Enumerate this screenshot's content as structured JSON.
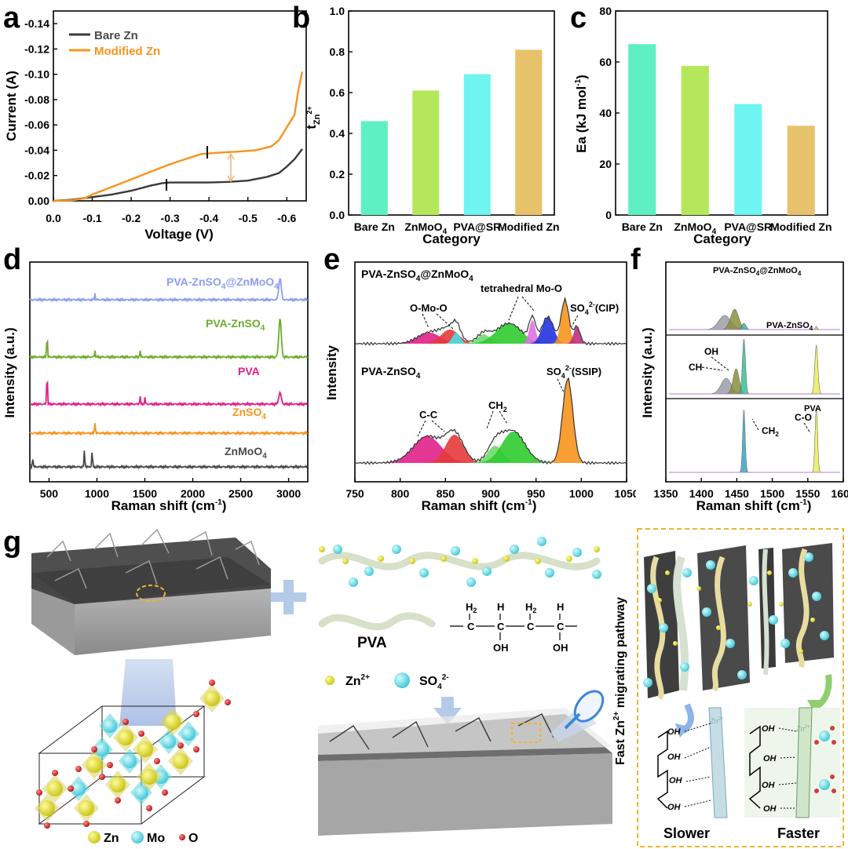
{
  "panel_labels": {
    "a": "a",
    "b": "b",
    "c": "c",
    "d": "d",
    "e": "e",
    "f": "f",
    "g": "g"
  },
  "colors": {
    "bare": "#3a3a3a",
    "modified": "#f7941d",
    "teal": "#5ef0c2",
    "green": "#b4e85a",
    "cyan": "#6ef5f2",
    "gold": "#e8c26a",
    "peri": "#8c9df0",
    "lime": "#6cad2a",
    "pink": "#e0208a",
    "orange": "#f7941d",
    "gray": "#4a4a4a",
    "dash": "#f0b232"
  },
  "chart_data": [
    {
      "id": "a",
      "type": "line",
      "xlabel": "Voltage (V)",
      "ylabel": "Current (A)",
      "xlim": [
        0.0,
        -0.65
      ],
      "ylim": [
        0.0,
        -0.15
      ],
      "xticks": [
        "0.0",
        "-0.1",
        "-0.2",
        "-0.3",
        "-0.4",
        "-0.5",
        "-0.6"
      ],
      "yticks": [
        "0.00",
        "-0.02",
        "-0.04",
        "-0.06",
        "-0.08",
        "-0.10",
        "-0.12",
        "-0.14"
      ],
      "legend": "top-left",
      "series": [
        {
          "name": "Bare Zn",
          "color": "#3a3a3a",
          "x": [
            0,
            -0.05,
            -0.1,
            -0.15,
            -0.2,
            -0.25,
            -0.28,
            -0.3,
            -0.35,
            -0.4,
            -0.45,
            -0.5,
            -0.55,
            -0.58,
            -0.6,
            -0.62,
            -0.64
          ],
          "y": [
            0,
            -0.001,
            -0.003,
            -0.005,
            -0.008,
            -0.012,
            -0.014,
            -0.0145,
            -0.0145,
            -0.0145,
            -0.015,
            -0.016,
            -0.019,
            -0.022,
            -0.027,
            -0.033,
            -0.041
          ]
        },
        {
          "name": "Modified Zn",
          "color": "#f7941d",
          "x": [
            0,
            -0.05,
            -0.08,
            -0.1,
            -0.15,
            -0.2,
            -0.25,
            -0.3,
            -0.35,
            -0.38,
            -0.42,
            -0.48,
            -0.52,
            -0.56,
            -0.58,
            -0.6,
            -0.62,
            -0.63,
            -0.64
          ],
          "y": [
            0,
            -0.0005,
            -0.002,
            -0.005,
            -0.011,
            -0.017,
            -0.023,
            -0.029,
            -0.034,
            -0.037,
            -0.038,
            -0.039,
            -0.04,
            -0.043,
            -0.048,
            -0.058,
            -0.068,
            -0.088,
            -0.102
          ]
        }
      ]
    },
    {
      "id": "b",
      "type": "bar",
      "xlabel": "Category",
      "ylabel": "t",
      "ylabel_sub": "Zn",
      "ylabel_sup": "2+",
      "categories": [
        "Bare Zn",
        "ZnMoO",
        "PVA@SR",
        "Modified Zn"
      ],
      "category_subs": [
        "",
        "4",
        "",
        ""
      ],
      "values": [
        0.46,
        0.61,
        0.69,
        0.81
      ],
      "ylim": [
        0,
        1.0
      ],
      "yticks": [
        "0.0",
        "0.2",
        "0.4",
        "0.6",
        "0.8",
        "1.0"
      ]
    },
    {
      "id": "c",
      "type": "bar",
      "xlabel": "Category",
      "ylabel": "Ea (kJ mol",
      "ylabel_sup": "-1",
      "ylabel_end": ")",
      "categories": [
        "Bare Zn",
        "ZnMoO",
        "PVA@SR",
        "Modified Zn"
      ],
      "category_subs": [
        "",
        "4",
        "",
        ""
      ],
      "values": [
        67,
        58.5,
        43.5,
        35
      ],
      "ylim": [
        0,
        80
      ],
      "yticks": [
        "0",
        "20",
        "40",
        "60",
        "80"
      ]
    },
    {
      "id": "d",
      "type": "line",
      "xlabel": "Raman shift (cm",
      "xlabel_sup": "-1",
      "xlabel_end": ")",
      "ylabel": "Intensity (a.u.)",
      "xlim": [
        300,
        3200
      ],
      "xticks": [
        "500",
        "1000",
        "1500",
        "2000",
        "2500",
        "3000"
      ],
      "series": [
        {
          "name": "PVA-ZnSO",
          "name_sub": "4",
          "name_tail": "@ZnMoO",
          "name_sub2": "4",
          "color": "#8c9df0"
        },
        {
          "name": "PVA-ZnSO",
          "name_sub": "4",
          "color": "#6cad2a"
        },
        {
          "name": "PVA",
          "color": "#e0208a"
        },
        {
          "name": "ZnSO",
          "name_sub": "4",
          "color": "#f7941d"
        },
        {
          "name": "ZnMoO",
          "name_sub": "4",
          "color": "#4a4a4a"
        }
      ]
    },
    {
      "id": "e",
      "type": "line",
      "xlabel": "Raman shift (cm",
      "xlabel_sup": "-1",
      "xlabel_end": ")",
      "ylabel": "Intensity",
      "xlim": [
        750,
        1050
      ],
      "xticks": [
        "750",
        "800",
        "850",
        "900",
        "950",
        "1000",
        "1050"
      ],
      "series": [
        {
          "name": "PVA-ZnSO",
          "name_sub": "4",
          "name_tail": "@ZnMoO",
          "name_sub2": "4"
        },
        {
          "name": "PVA-ZnSO",
          "name_sub": "4"
        }
      ],
      "annotations": {
        "omo": "O-Mo-O",
        "tetra": "tetrahedral Mo-O",
        "cip_a": "SO",
        "cip_sub": "4",
        "cip_sup": "2-",
        "cip_b": "(CIP)",
        "ssip_a": "SO",
        "ssip_sub": "4",
        "ssip_sup": "2-",
        "ssip_b": "(SSIP)",
        "cc": "C-C",
        "ch2": "CH",
        "ch2_sub": "2"
      }
    },
    {
      "id": "f",
      "type": "line",
      "xlabel": "Raman shift (cm",
      "xlabel_sup": "-1",
      "xlabel_end": ")",
      "ylabel": "Intensity (a.u.)",
      "xlim": [
        1350,
        1600
      ],
      "xticks": [
        "1350",
        "1400",
        "1450",
        "1500",
        "1550",
        "1600"
      ],
      "series": [
        {
          "name": "PVA-ZnSO",
          "name_sub": "4",
          "name_tail": "@ZnMoO",
          "name_sub2": "4"
        },
        {
          "name": "PVA-ZnSO",
          "name_sub": "4"
        },
        {
          "name": "PVA"
        }
      ],
      "annotations": {
        "oh": "OH",
        "ch": "CH",
        "ch2": "CH",
        "ch2_sub": "2",
        "co": "C-O"
      }
    }
  ],
  "scheme": {
    "pva": "PVA",
    "zn_ion_a": "Zn",
    "zn_ion_sup": "2+",
    "so4_a": "SO",
    "so4_sub": "4",
    "so4_sup": "2-",
    "formula_h2": "H",
    "formula_h2_sub": "2",
    "formula_h": "H",
    "formula_c": "C",
    "formula_oh": "OH",
    "legend_zn": "Zn",
    "legend_mo": "Mo",
    "legend_o": "O",
    "pathway_a": "Fast Zn",
    "pathway_sup": "2+",
    "pathway_b": " migrating pathway",
    "oh": "OH",
    "slower": "Slower",
    "faster": "Faster",
    "ion_zn_a": "Zn",
    "ion_zn_sup": "2+"
  }
}
